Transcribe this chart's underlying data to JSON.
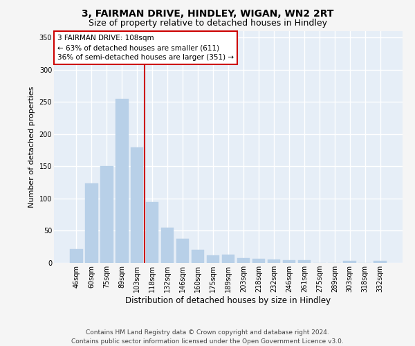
{
  "title_line1": "3, FAIRMAN DRIVE, HINDLEY, WIGAN, WN2 2RT",
  "title_line2": "Size of property relative to detached houses in Hindley",
  "xlabel": "Distribution of detached houses by size in Hindley",
  "ylabel": "Number of detached properties",
  "categories": [
    "46sqm",
    "60sqm",
    "75sqm",
    "89sqm",
    "103sqm",
    "118sqm",
    "132sqm",
    "146sqm",
    "160sqm",
    "175sqm",
    "189sqm",
    "203sqm",
    "218sqm",
    "232sqm",
    "246sqm",
    "261sqm",
    "275sqm",
    "289sqm",
    "303sqm",
    "318sqm",
    "332sqm"
  ],
  "values": [
    22,
    124,
    150,
    255,
    180,
    95,
    55,
    38,
    20,
    12,
    13,
    7,
    6,
    5,
    4,
    4,
    0,
    0,
    3,
    0,
    3
  ],
  "bar_color": "#b8d0e8",
  "bar_edgecolor": "#b8d0e8",
  "property_line_x": 4.5,
  "property_line_color": "#cc0000",
  "annotation_text": "3 FAIRMAN DRIVE: 108sqm\n← 63% of detached houses are smaller (611)\n36% of semi-detached houses are larger (351) →",
  "annotation_box_edgecolor": "#cc0000",
  "annotation_box_facecolor": "#ffffff",
  "ylim": [
    0,
    360
  ],
  "yticks": [
    0,
    50,
    100,
    150,
    200,
    250,
    300,
    350
  ],
  "plot_bg_color": "#e6eef7",
  "fig_bg_color": "#f5f5f5",
  "grid_color": "#ffffff",
  "footer_line1": "Contains HM Land Registry data © Crown copyright and database right 2024.",
  "footer_line2": "Contains public sector information licensed under the Open Government Licence v3.0.",
  "title_fontsize": 10,
  "subtitle_fontsize": 9,
  "tick_fontsize": 7,
  "ylabel_fontsize": 8,
  "xlabel_fontsize": 8.5,
  "footer_fontsize": 6.5,
  "annot_fontsize": 7.5
}
